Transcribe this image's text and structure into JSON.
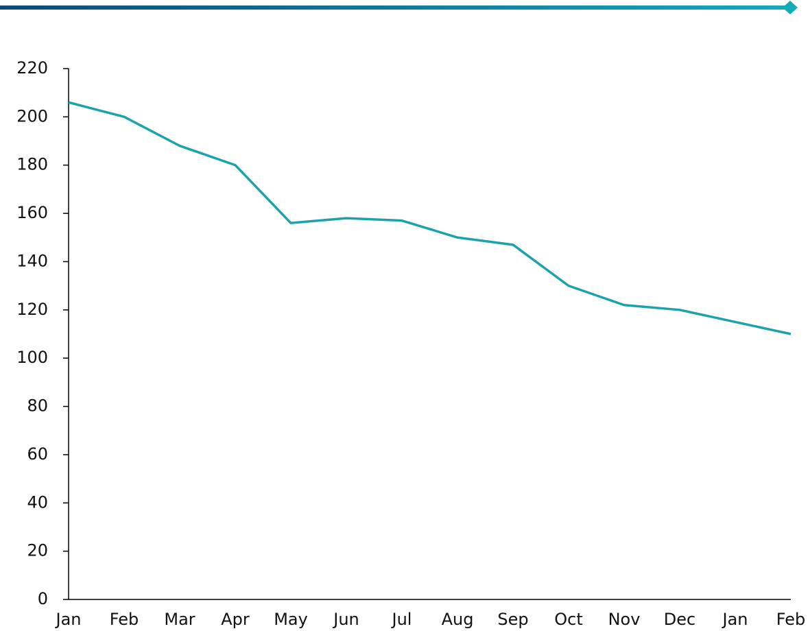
{
  "chart_data": {
    "type": "line",
    "categories": [
      "Jan",
      "Feb",
      "Mar",
      "Apr",
      "May",
      "Jun",
      "Jul",
      "Aug",
      "Sep",
      "Oct",
      "Nov",
      "Dec",
      "Jan",
      "Feb"
    ],
    "series": [
      {
        "color": "#1aa3ad",
        "values": [
          206,
          200,
          188,
          180,
          156,
          158,
          157,
          150,
          147,
          130,
          122,
          120,
          115,
          110
        ]
      }
    ],
    "ylim": [
      0,
      220
    ],
    "yticks": [
      0,
      20,
      40,
      60,
      80,
      100,
      120,
      140,
      160,
      180,
      200,
      220
    ],
    "grid": false
  }
}
